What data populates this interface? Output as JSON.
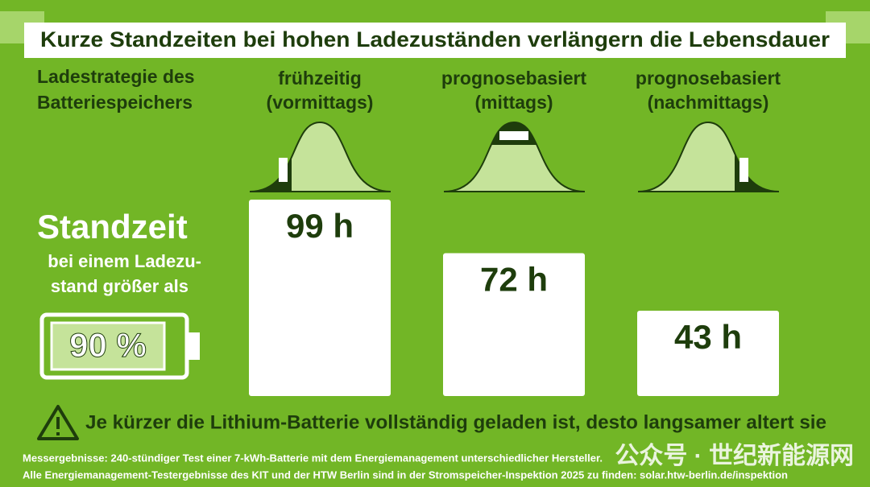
{
  "title": "Kurze Standzeiten bei hohen Ladezuständen verlängern die Lebensdauer",
  "strategy_label": [
    "Ladestrategie des",
    "Batteriespeichers"
  ],
  "standzeit": {
    "heading": "Standzeit",
    "lines": [
      "bei einem Ladezu-",
      "stand größer als"
    ],
    "battery_label": "90 %"
  },
  "chart_data": {
    "type": "bar",
    "categories": [
      "frühzeitig (vormittags)",
      "prognosebasiert (mittags)",
      "prognosebasiert (nachmittags)"
    ],
    "values": [
      99,
      72,
      43
    ],
    "value_labels": [
      "99 h",
      "72 h",
      "43 h"
    ],
    "color": "#ffffff"
  },
  "warning": "Je kürzer die Lithium-Batterie vollständig geladen ist, desto langsamer altert sie",
  "footnotes": [
    "Messergebnisse: 240-stündiger Test einer 7-kWh-Batterie mit dem Energiemanagement unterschiedlicher Hersteller.",
    "Alle Energiemanagement-Testergebnisse des KIT und der HTW Berlin sind in der Stromspeicher-Inspektion 2025 zu finden: solar.htw-berlin.de/inspektion"
  ],
  "watermark": "公众号 · 世纪新能源网"
}
